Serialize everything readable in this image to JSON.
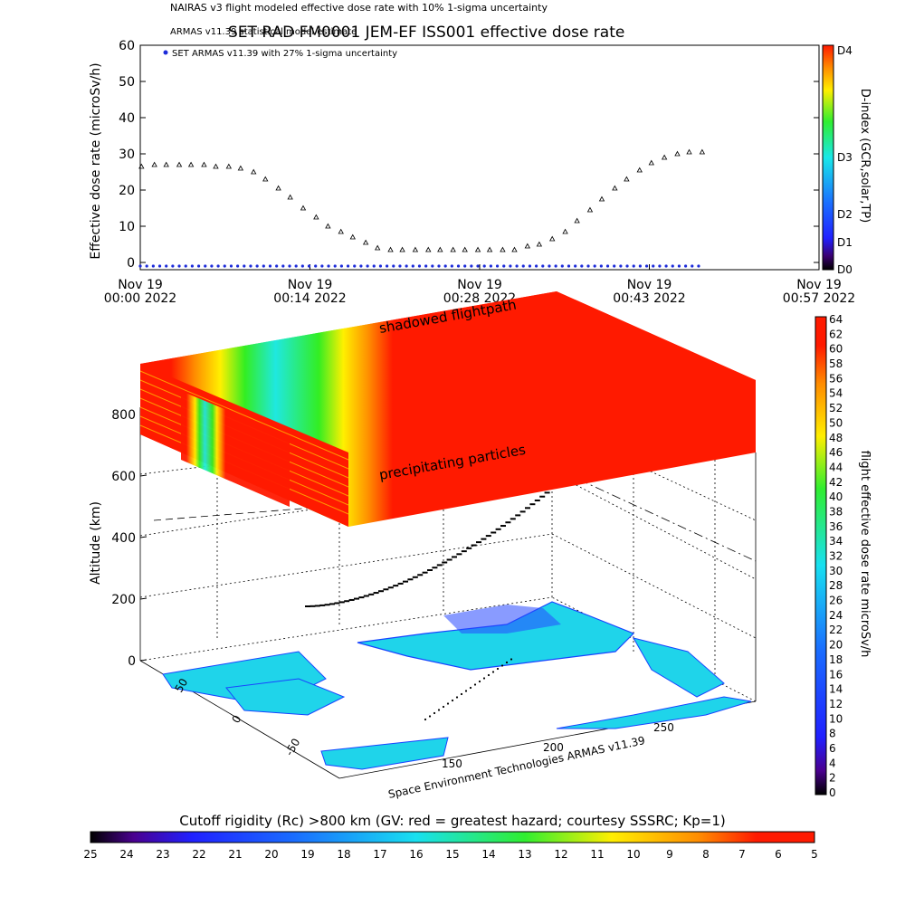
{
  "header": {
    "line1": "NAIRAS v3 flight modeled effective dose rate with 10% 1-sigma uncertainty",
    "line2": "ARMAS v11.39 statistical model estimate",
    "title": "SET RAD FM0001 JEM-EF ISS001 effective dose rate",
    "legend_series": "SET ARMAS v11.39 with 27% 1-sigma uncertainty"
  },
  "chart_data": [
    {
      "type": "scatter",
      "ylabel": "Effective dose rate (microSv/h)",
      "ylim": [
        0,
        60
      ],
      "yticks": [
        "0",
        "10",
        "20",
        "30",
        "40",
        "50",
        "60"
      ],
      "xticks": [
        {
          "l1": "Nov 19",
          "l2": "00:00 2022"
        },
        {
          "l1": "Nov 19",
          "l2": "00:14 2022"
        },
        {
          "l1": "Nov 19",
          "l2": "00:28 2022"
        },
        {
          "l1": "Nov 19",
          "l2": "00:43 2022"
        },
        {
          "l1": "Nov 19",
          "l2": "00:57 2022"
        }
      ],
      "xlim_min": [
        0,
        57.5
      ],
      "series": [
        {
          "name": "ARMAS v11.39 statistical model estimate",
          "marker": "triangle",
          "x": [
            0.1,
            1.2,
            2.2,
            3.3,
            4.3,
            5.4,
            6.4,
            7.5,
            8.5,
            9.6,
            10.6,
            11.7,
            12.7,
            13.8,
            14.9,
            15.9,
            17.0,
            18.0,
            19.1,
            20.1,
            21.2,
            22.2,
            23.3,
            24.4,
            25.4,
            26.5,
            27.5,
            28.6,
            29.6,
            30.7,
            31.7,
            32.8,
            33.8,
            34.9,
            36.0,
            37.0,
            38.1,
            39.1,
            40.2,
            41.2,
            42.3,
            43.3,
            44.4,
            45.5,
            46.5,
            47.6
          ],
          "y": [
            26.5,
            27.0,
            27.0,
            27.0,
            27.0,
            27.0,
            26.5,
            26.5,
            26.0,
            25.0,
            23.0,
            20.5,
            18.0,
            15.0,
            12.5,
            10.0,
            8.5,
            7.0,
            5.5,
            4.0,
            3.5,
            3.5,
            3.5,
            3.5,
            3.5,
            3.5,
            3.5,
            3.5,
            3.5,
            3.5,
            3.5,
            4.5,
            5.0,
            6.5,
            8.5,
            11.5,
            14.5,
            17.5,
            20.5,
            23.0,
            25.5,
            27.5,
            29.0,
            30.0,
            30.5,
            30.5
          ]
        },
        {
          "name": "SET ARMAS v11.39 with 27% 1-sigma uncertainty",
          "marker": "dot",
          "color": "#1c2bd9",
          "x_range": [
            0,
            47.6
          ],
          "value": -1
        }
      ]
    },
    {
      "type": "heatmap",
      "zlabel": "Altitude (km)",
      "zticks": [
        "0",
        "200",
        "400",
        "600",
        "800"
      ],
      "lat_ticks": [
        "50",
        "0",
        "-50"
      ],
      "lon_ticks": [
        "150",
        "200",
        "250"
      ],
      "annotations": [
        "shadowed flightpath",
        "precipitating particles"
      ],
      "footer": "Space Environment Technologies ARMAS v11.39"
    },
    {
      "type": "heatmap",
      "orientation": "vertical",
      "label": "flight effective dose rate microSv/h",
      "range": [
        0,
        64
      ],
      "step": 2
    },
    {
      "type": "heatmap",
      "orientation": "vertical",
      "label": "D-index (GCR,solar,TP)",
      "ticks": [
        "D0",
        "D1",
        "D2",
        "D3",
        "D4"
      ]
    },
    {
      "type": "heatmap",
      "orientation": "horizontal",
      "title": "Cutoff rigidity (Rc) >800 km (GV: red = greatest hazard; courtesy SSSRC; Kp=1)",
      "ticks": [
        "25",
        "24",
        "23",
        "22",
        "21",
        "20",
        "19",
        "18",
        "17",
        "16",
        "15",
        "14",
        "13",
        "12",
        "11",
        "10",
        "9",
        "8",
        "7",
        "6",
        "5"
      ]
    }
  ],
  "colors": {
    "red": "#ff1a00",
    "orange": "#ff9000",
    "yellow": "#fff000",
    "green": "#33ee22",
    "cyan": "#1fe8e0",
    "blue": "#1844ff",
    "purple": "#6a00b0",
    "land": "#1fd4ea",
    "series_blue": "#1c2bd9"
  }
}
